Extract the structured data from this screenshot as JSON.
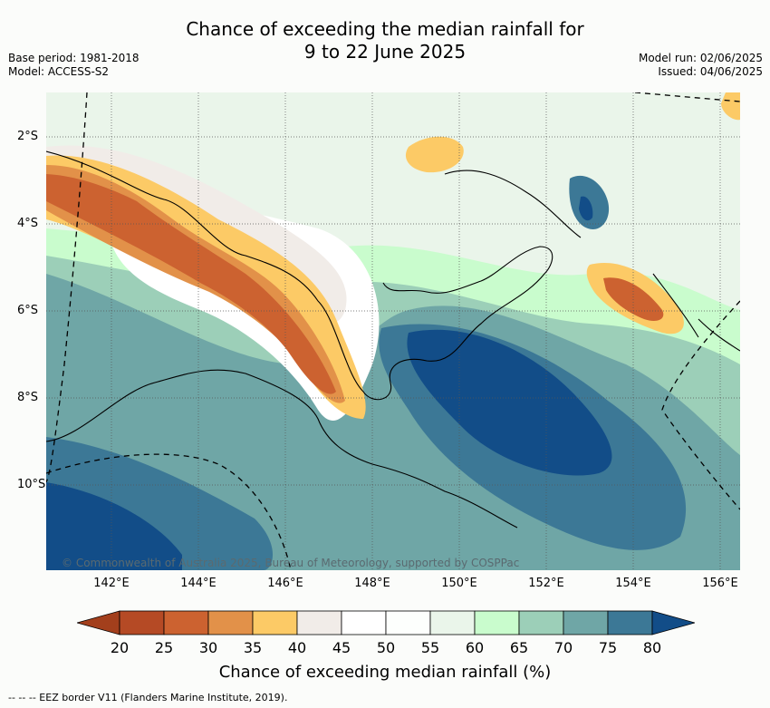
{
  "title": {
    "line1": "Chance of exceeding the median rainfall for",
    "line2": "9 to 22 June 2025"
  },
  "meta_left": {
    "base_period": "Base period: 1981-2018",
    "model": "Model: ACCESS-S2"
  },
  "meta_right": {
    "model_run": "Model run: 02/06/2025",
    "issued": "Issued: 04/06/2025"
  },
  "map": {
    "lat_labels": [
      "2°S",
      "4°S",
      "6°S",
      "8°S",
      "10°S"
    ],
    "lon_labels": [
      "142°E",
      "144°E",
      "146°E",
      "148°E",
      "150°E",
      "152°E",
      "154°E",
      "156°E"
    ],
    "copyright": "© Commonwealth of Australia 2025, Bureau of Meteorology, supported by COSPPac"
  },
  "colorbar": {
    "ticks": [
      "20",
      "25",
      "30",
      "35",
      "40",
      "45",
      "50",
      "55",
      "60",
      "65",
      "70",
      "75",
      "80"
    ],
    "colors": [
      "#a33f1c",
      "#b54a25",
      "#cc6230",
      "#e29149",
      "#fcca66",
      "#f1ece8",
      "#ffffff",
      "#fdfffd",
      "#eaf5ea",
      "#c9fccd",
      "#9ccfb8",
      "#6fa6a6",
      "#3c7896",
      "#124d88"
    ],
    "label": "Chance of exceeding median rainfall (%)"
  },
  "footer": "-- -- -- EEZ border V11 (Flanders Marine Institute, 2019)."
}
